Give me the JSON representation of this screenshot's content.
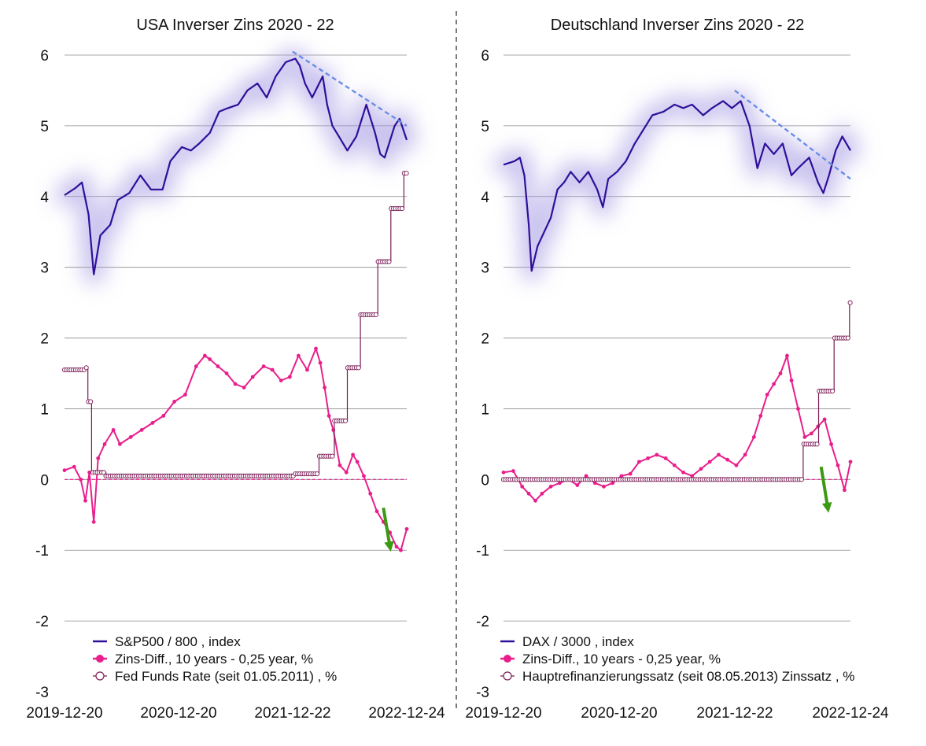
{
  "chart_data": [
    {
      "type": "line",
      "title": "USA Inverser Zins 2020 - 22",
      "x_ticks": [
        "2019-12-20",
        "2020-12-20",
        "2021-12-22",
        "2022-12-24"
      ],
      "y_ticks": [
        "6",
        "5",
        "4",
        "3",
        "2",
        "1",
        "0",
        "-1",
        "-2",
        "-3"
      ],
      "ylim": [
        -3,
        6
      ],
      "xlim": [
        "2019-12-20",
        "2022-12-24"
      ],
      "grid": "horizontal",
      "legend_position": "bottom-left",
      "series": [
        {
          "name": "S&P500 / 800 , index",
          "color": "#2e0f9a",
          "style": "line",
          "x": [
            "2019-12-20",
            "2020-01-24",
            "2020-02-14",
            "2020-03-06",
            "2020-03-23",
            "2020-04-13",
            "2020-05-15",
            "2020-06-08",
            "2020-07-15",
            "2020-08-20",
            "2020-09-23",
            "2020-10-30",
            "2020-11-24",
            "2020-12-31",
            "2021-01-29",
            "2021-02-25",
            "2021-03-31",
            "2021-04-30",
            "2021-05-28",
            "2021-06-30",
            "2021-07-30",
            "2021-08-31",
            "2021-09-30",
            "2021-10-29",
            "2021-11-30",
            "2021-12-31",
            "2022-01-14",
            "2022-01-31",
            "2022-02-23",
            "2022-03-29",
            "2022-04-12",
            "2022-04-29",
            "2022-05-20",
            "2022-06-16",
            "2022-07-15",
            "2022-08-16",
            "2022-09-13",
            "2022-09-30",
            "2022-10-14",
            "2022-11-15",
            "2022-12-01",
            "2022-12-24"
          ],
          "values": [
            4.02,
            4.12,
            4.2,
            3.75,
            2.9,
            3.45,
            3.6,
            3.95,
            4.05,
            4.3,
            4.1,
            4.1,
            4.5,
            4.7,
            4.65,
            4.75,
            4.9,
            5.2,
            5.25,
            5.3,
            5.5,
            5.6,
            5.4,
            5.7,
            5.9,
            5.95,
            5.85,
            5.6,
            5.4,
            5.7,
            5.3,
            5.0,
            4.85,
            4.65,
            4.85,
            5.3,
            4.9,
            4.6,
            4.55,
            5.0,
            5.1,
            4.8
          ]
        },
        {
          "name": "Zins-Diff., 10 years - 0,25 year, %",
          "color": "#e91e8c",
          "style": "line-filled-markers",
          "x": [
            "2019-12-20",
            "2020-01-20",
            "2020-02-10",
            "2020-02-25",
            "2020-03-09",
            "2020-03-23",
            "2020-04-06",
            "2020-04-27",
            "2020-05-25",
            "2020-06-15",
            "2020-07-20",
            "2020-08-24",
            "2020-09-28",
            "2020-11-02",
            "2020-12-07",
            "2021-01-11",
            "2021-02-15",
            "2021-03-15",
            "2021-03-31",
            "2021-04-26",
            "2021-05-24",
            "2021-06-21",
            "2021-07-19",
            "2021-08-16",
            "2021-09-20",
            "2021-10-18",
            "2021-11-15",
            "2021-12-13",
            "2022-01-10",
            "2022-02-07",
            "2022-03-07",
            "2022-03-21",
            "2022-04-04",
            "2022-04-18",
            "2022-05-02",
            "2022-05-23",
            "2022-06-13",
            "2022-07-04",
            "2022-07-18",
            "2022-08-08",
            "2022-08-29",
            "2022-09-19",
            "2022-10-10",
            "2022-10-31",
            "2022-11-21",
            "2022-12-05",
            "2022-12-24"
          ],
          "values": [
            0.13,
            0.18,
            0.0,
            -0.3,
            0.1,
            -0.6,
            0.3,
            0.5,
            0.7,
            0.5,
            0.6,
            0.7,
            0.8,
            0.9,
            1.1,
            1.2,
            1.6,
            1.75,
            1.7,
            1.6,
            1.5,
            1.35,
            1.3,
            1.45,
            1.6,
            1.55,
            1.4,
            1.45,
            1.75,
            1.55,
            1.85,
            1.65,
            1.3,
            0.9,
            0.7,
            0.2,
            0.1,
            0.35,
            0.25,
            0.05,
            -0.2,
            -0.45,
            -0.6,
            -0.75,
            -0.95,
            -1.0,
            -0.7
          ]
        },
        {
          "name": "Fed Funds Rate (seit 01.05.2011) , %",
          "color": "#7a1b55",
          "style": "step-open-markers",
          "x": [
            "2019-12-20",
            "2020-02-25",
            "2020-03-04",
            "2020-03-16",
            "2020-05-01",
            "2021-12-31",
            "2022-03-17",
            "2022-05-05",
            "2022-06-16",
            "2022-07-28",
            "2022-09-22",
            "2022-11-03",
            "2022-12-15"
          ],
          "values": [
            1.55,
            1.58,
            1.1,
            0.1,
            0.05,
            0.08,
            0.33,
            0.83,
            1.58,
            2.33,
            3.08,
            3.83,
            4.33
          ]
        }
      ],
      "trend_line": {
        "color": "#6a8de8",
        "from": [
          "2021-12-22",
          6.05
        ],
        "to": [
          "2022-12-24",
          5.0
        ]
      },
      "annotation_arrow": {
        "color": "#3a9a12",
        "from": [
          "2022-10-10",
          -0.4
        ],
        "to": [
          "2022-10-31",
          -0.95
        ]
      }
    },
    {
      "type": "line",
      "title": "Deutschland Inverser Zins 2020 - 22",
      "x_ticks": [
        "2019-12-20",
        "2020-12-20",
        "2021-12-22",
        "2022-12-24"
      ],
      "y_ticks": [
        "6",
        "5",
        "4",
        "3",
        "2",
        "1",
        "0",
        "-1",
        "-2",
        "-3"
      ],
      "ylim": [
        -3,
        6
      ],
      "xlim": [
        "2019-12-20",
        "2022-12-24"
      ],
      "grid": "horizontal",
      "legend_position": "bottom-left",
      "series": [
        {
          "name": "DAX / 3000 , index",
          "color": "#2e0f9a",
          "style": "line",
          "x": [
            "2019-12-20",
            "2020-01-24",
            "2020-02-10",
            "2020-02-24",
            "2020-03-09",
            "2020-03-18",
            "2020-04-06",
            "2020-04-27",
            "2020-05-18",
            "2020-06-08",
            "2020-06-29",
            "2020-07-20",
            "2020-08-17",
            "2020-09-14",
            "2020-10-12",
            "2020-10-30",
            "2020-11-16",
            "2020-12-14",
            "2021-01-11",
            "2021-02-08",
            "2021-03-08",
            "2021-04-05",
            "2021-05-10",
            "2021-06-14",
            "2021-07-12",
            "2021-08-09",
            "2021-09-13",
            "2021-10-11",
            "2021-11-15",
            "2021-12-13",
            "2022-01-10",
            "2022-02-07",
            "2022-03-04",
            "2022-03-28",
            "2022-04-25",
            "2022-05-23",
            "2022-06-20",
            "2022-07-11",
            "2022-08-15",
            "2022-09-12",
            "2022-09-29",
            "2022-10-17",
            "2022-11-07",
            "2022-11-28",
            "2022-12-24"
          ],
          "values": [
            4.45,
            4.5,
            4.55,
            4.3,
            3.6,
            2.95,
            3.3,
            3.5,
            3.7,
            4.1,
            4.2,
            4.35,
            4.2,
            4.35,
            4.1,
            3.85,
            4.25,
            4.35,
            4.5,
            4.75,
            4.95,
            5.15,
            5.2,
            5.3,
            5.25,
            5.3,
            5.15,
            5.25,
            5.35,
            5.25,
            5.35,
            5.0,
            4.4,
            4.75,
            4.6,
            4.75,
            4.3,
            4.4,
            4.55,
            4.2,
            4.05,
            4.3,
            4.65,
            4.85,
            4.65
          ]
        },
        {
          "name": "Zins-Diff., 10 years - 0,25 year, %",
          "color": "#e91e8c",
          "style": "line-filled-markers",
          "x": [
            "2019-12-20",
            "2020-01-20",
            "2020-02-17",
            "2020-03-09",
            "2020-03-30",
            "2020-04-20",
            "2020-05-18",
            "2020-06-15",
            "2020-07-13",
            "2020-08-10",
            "2020-09-07",
            "2020-10-05",
            "2020-11-02",
            "2020-11-30",
            "2020-12-28",
            "2021-01-25",
            "2021-02-22",
            "2021-03-22",
            "2021-04-19",
            "2021-05-17",
            "2021-06-14",
            "2021-07-12",
            "2021-08-09",
            "2021-09-06",
            "2021-10-04",
            "2021-11-01",
            "2021-11-29",
            "2021-12-27",
            "2022-01-24",
            "2022-02-21",
            "2022-03-14",
            "2022-04-04",
            "2022-04-25",
            "2022-05-16",
            "2022-06-06",
            "2022-06-20",
            "2022-07-11",
            "2022-08-01",
            "2022-08-22",
            "2022-09-12",
            "2022-10-03",
            "2022-10-24",
            "2022-11-14",
            "2022-12-05",
            "2022-12-24"
          ],
          "values": [
            0.1,
            0.12,
            -0.1,
            -0.2,
            -0.3,
            -0.2,
            -0.1,
            -0.05,
            0.0,
            -0.08,
            0.05,
            -0.05,
            -0.1,
            -0.05,
            0.05,
            0.08,
            0.25,
            0.3,
            0.35,
            0.3,
            0.2,
            0.1,
            0.05,
            0.15,
            0.25,
            0.35,
            0.28,
            0.2,
            0.35,
            0.6,
            0.9,
            1.2,
            1.35,
            1.5,
            1.75,
            1.4,
            1.0,
            0.6,
            0.65,
            0.75,
            0.85,
            0.5,
            0.2,
            -0.15,
            0.25
          ]
        },
        {
          "name": "Hauptrefinanzierungssatz (seit 08.05.2013) Zinssatz , %",
          "color": "#7a1b55",
          "style": "step-open-markers",
          "x": [
            "2019-12-20",
            "2022-07-27",
            "2022-09-14",
            "2022-11-02",
            "2022-12-21"
          ],
          "values": [
            0.0,
            0.5,
            1.25,
            2.0,
            2.5
          ]
        }
      ],
      "trend_line": {
        "color": "#6a8de8",
        "from": [
          "2021-12-22",
          5.5
        ],
        "to": [
          "2022-12-24",
          4.25
        ]
      },
      "annotation_arrow": {
        "color": "#3a9a12",
        "from": [
          "2022-09-22",
          0.18
        ],
        "to": [
          "2022-10-13",
          -0.4
        ]
      }
    }
  ]
}
